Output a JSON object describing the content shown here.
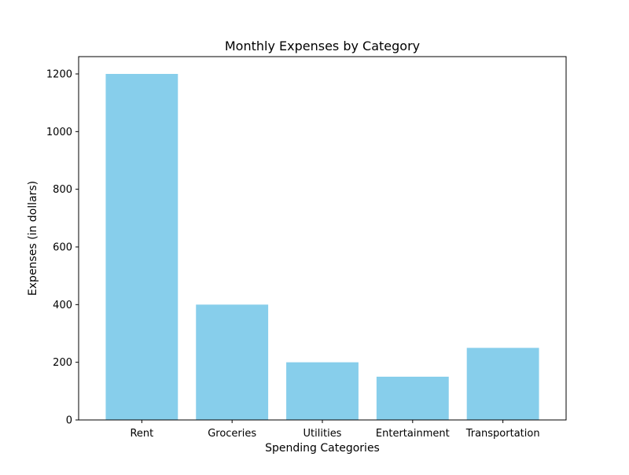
{
  "chart_data": {
    "type": "bar",
    "title": "Monthly Expenses by Category",
    "xlabel": "Spending Categories",
    "ylabel": "Expenses (in dollars)",
    "categories": [
      "Rent",
      "Groceries",
      "Utilities",
      "Entertainment",
      "Transportation"
    ],
    "values": [
      1200,
      400,
      200,
      150,
      250
    ],
    "ylim": [
      0,
      1260
    ],
    "yticks": [
      0,
      200,
      400,
      600,
      800,
      1000,
      1200
    ],
    "grid": false,
    "colors": {
      "bar": "#87ceeb",
      "axis": "#000000"
    }
  }
}
